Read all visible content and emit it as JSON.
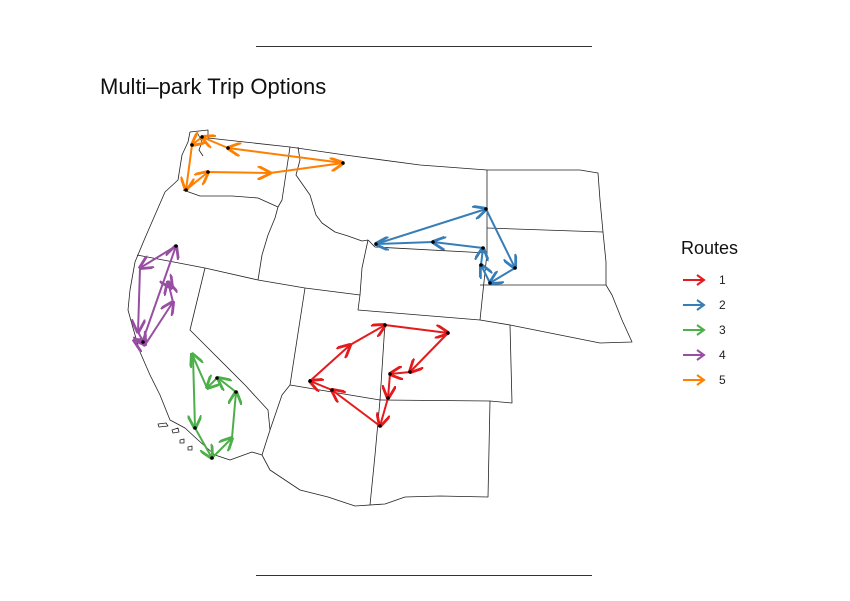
{
  "title": "Multi–park Trip Options",
  "legend": {
    "title": "Routes",
    "items": [
      {
        "label": "1",
        "color": "#e41a1c"
      },
      {
        "label": "2",
        "color": "#377eb8"
      },
      {
        "label": "3",
        "color": "#4daf4a"
      },
      {
        "label": "4",
        "color": "#984ea3"
      },
      {
        "label": "5",
        "color": "#ff7f00"
      }
    ]
  },
  "map_style": {
    "state_border_color": "#222222",
    "point_color": "#000000"
  }
}
